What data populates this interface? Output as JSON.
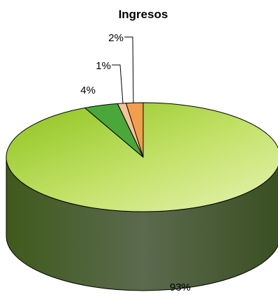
{
  "chart_data": {
    "type": "pie",
    "title": "Ingresos",
    "categories": [
      "",
      "",
      "",
      ""
    ],
    "values": [
      93,
      4,
      1,
      2
    ],
    "labels": [
      "93%",
      "4%",
      "1%",
      "2%"
    ],
    "colors": [
      "#a8d02a",
      "#4aa83a",
      "#f4c39c",
      "#f29e4c"
    ],
    "style": "3d"
  }
}
